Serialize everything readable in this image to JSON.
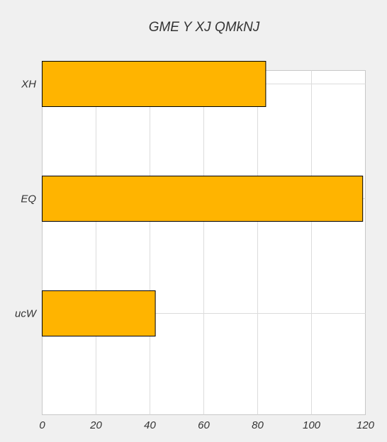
{
  "chart_data": {
    "type": "bar",
    "orientation": "horizontal",
    "title": "GME Y XJ QMkNJ",
    "xlabel": "",
    "ylabel": "",
    "categories": [
      "XH",
      "EQ",
      "ucW"
    ],
    "values": [
      83,
      119,
      42
    ],
    "xlim": [
      0,
      120
    ],
    "xticks": [
      0,
      20,
      40,
      60,
      80,
      100,
      120
    ],
    "grid": true,
    "bar_color": "#ffb400",
    "background_color": "#f0f0f0"
  }
}
